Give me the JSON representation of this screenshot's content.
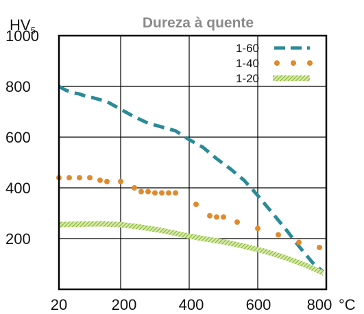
{
  "chart_data": {
    "type": "line",
    "title": "Dureza à quente",
    "ylabel_main": "HV",
    "ylabel_sub": "5",
    "xlabel": "",
    "x_unit": "°C",
    "x_ticks": [
      "20",
      "200",
      "400",
      "600",
      "800"
    ],
    "y_ticks": [
      "1000",
      "800",
      "600",
      "400",
      "200"
    ],
    "xlim": [
      20,
      800
    ],
    "ylim": [
      0,
      1000
    ],
    "grid": true,
    "legend_position": "top-right",
    "colors": {
      "1-60": "#2a8b97",
      "1-40": "#e08a2e",
      "1-20": "#8cbd3c",
      "grid": "#000000",
      "title": "#8a8a8a"
    },
    "series": [
      {
        "name": "1-60",
        "style": "dashed-line",
        "x": [
          20,
          40,
          60,
          80,
          100,
          120,
          160,
          200,
          240,
          280,
          320,
          360,
          400,
          440,
          480,
          520,
          560,
          600,
          640,
          680,
          720,
          760,
          790
        ],
        "y": [
          800,
          785,
          775,
          770,
          760,
          755,
          740,
          710,
          680,
          655,
          640,
          625,
          590,
          560,
          515,
          475,
          430,
          370,
          305,
          240,
          170,
          105,
          70
        ]
      },
      {
        "name": "1-40",
        "style": "dots",
        "x": [
          20,
          50,
          80,
          110,
          140,
          160,
          200,
          240,
          260,
          280,
          300,
          320,
          340,
          360,
          420,
          460,
          480,
          500,
          540,
          600,
          660,
          720,
          780
        ],
        "y": [
          440,
          440,
          440,
          440,
          430,
          425,
          425,
          400,
          385,
          385,
          380,
          380,
          380,
          380,
          335,
          290,
          285,
          285,
          265,
          240,
          215,
          185,
          165
        ]
      },
      {
        "name": "1-20",
        "style": "hatched-band",
        "x": [
          20,
          80,
          140,
          200,
          260,
          320,
          380,
          440,
          500,
          560,
          620,
          680,
          740,
          790
        ],
        "y": [
          255,
          257,
          258,
          255,
          245,
          232,
          215,
          200,
          187,
          170,
          150,
          125,
          95,
          65
        ]
      }
    ]
  }
}
